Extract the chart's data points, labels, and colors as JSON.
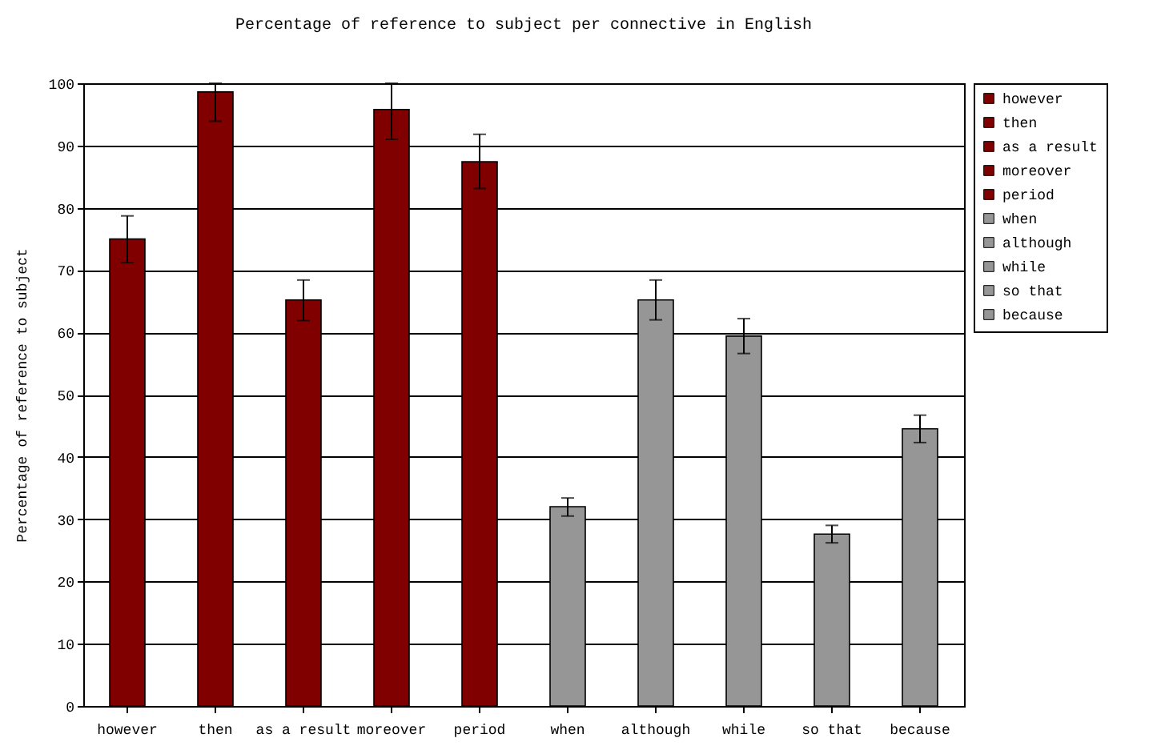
{
  "chart_data": {
    "type": "bar",
    "title": "Percentage of reference to subject per connective in English",
    "ylabel": "Percentage of reference to subject",
    "categories": [
      "however",
      "then",
      "as a result",
      "moreover",
      "period",
      "when",
      "although",
      "while",
      "so that",
      "because"
    ],
    "series": [
      {
        "name": "however",
        "color": "#800000",
        "values": [
          75,
          null,
          null,
          null,
          null,
          null,
          null,
          null,
          null,
          null
        ],
        "errors": [
          [
            71.2,
            78.7
          ],
          null,
          null,
          null,
          null,
          null,
          null,
          null,
          null,
          null
        ]
      },
      {
        "name": "then",
        "color": "#800000",
        "values": [
          null,
          98.6,
          null,
          null,
          null,
          null,
          null,
          null,
          null,
          null
        ],
        "errors": [
          null,
          [
            93.9,
            100
          ],
          null,
          null,
          null,
          null,
          null,
          null,
          null,
          null
        ]
      },
      {
        "name": "as a result",
        "color": "#800000",
        "values": [
          null,
          null,
          65.2,
          null,
          null,
          null,
          null,
          null,
          null,
          null
        ],
        "errors": [
          null,
          null,
          [
            61.9,
            68.4
          ],
          null,
          null,
          null,
          null,
          null,
          null,
          null
        ]
      },
      {
        "name": "moreover",
        "color": "#800000",
        "values": [
          null,
          null,
          null,
          95.8,
          null,
          null,
          null,
          null,
          null,
          null
        ],
        "errors": [
          null,
          null,
          null,
          [
            91,
            100
          ],
          null,
          null,
          null,
          null,
          null,
          null
        ]
      },
      {
        "name": "period",
        "color": "#800000",
        "values": [
          null,
          null,
          null,
          null,
          87.4,
          null,
          null,
          null,
          null,
          null
        ],
        "errors": [
          null,
          null,
          null,
          null,
          [
            83.1,
            91.8
          ],
          null,
          null,
          null,
          null,
          null
        ]
      },
      {
        "name": "when",
        "color": "#969696",
        "values": [
          null,
          null,
          null,
          null,
          null,
          32,
          null,
          null,
          null,
          null
        ],
        "errors": [
          null,
          null,
          null,
          null,
          null,
          [
            30.5,
            33.4
          ],
          null,
          null,
          null,
          null
        ]
      },
      {
        "name": "although",
        "color": "#969696",
        "values": [
          null,
          null,
          null,
          null,
          null,
          null,
          65.2,
          null,
          null,
          null
        ],
        "errors": [
          null,
          null,
          null,
          null,
          null,
          null,
          [
            62,
            68.4
          ],
          null,
          null,
          null
        ]
      },
      {
        "name": "while",
        "color": "#969696",
        "values": [
          null,
          null,
          null,
          null,
          null,
          null,
          null,
          59.4,
          null,
          null
        ],
        "errors": [
          null,
          null,
          null,
          null,
          null,
          null,
          null,
          [
            56.6,
            62.2
          ],
          null,
          null
        ]
      },
      {
        "name": "so that",
        "color": "#969696",
        "values": [
          null,
          null,
          null,
          null,
          null,
          null,
          null,
          null,
          27.6,
          null
        ],
        "errors": [
          null,
          null,
          null,
          null,
          null,
          null,
          null,
          null,
          [
            26.2,
            29
          ],
          null
        ]
      },
      {
        "name": "because",
        "color": "#969696",
        "values": [
          null,
          null,
          null,
          null,
          null,
          null,
          null,
          null,
          null,
          44.5
        ],
        "errors": [
          null,
          null,
          null,
          null,
          null,
          null,
          null,
          null,
          null,
          [
            42.3,
            46.7
          ]
        ]
      }
    ],
    "ylim": [
      0,
      100
    ],
    "yticks": [
      0,
      10,
      20,
      30,
      40,
      50,
      60,
      70,
      80,
      90,
      100
    ],
    "grid": "y",
    "legend": "right"
  }
}
